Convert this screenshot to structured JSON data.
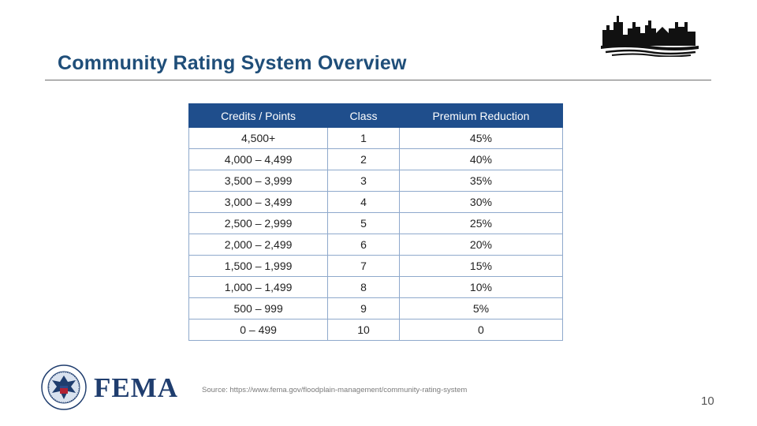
{
  "slide": {
    "title": "Community Rating System Overview",
    "page_number": "10",
    "source": "Source: https://www.fema.gov/floodplain-management/community-rating-system",
    "logo_text": "FEMA",
    "seal_text": "U.S. DEPARTMENT OF HOMELAND SECURITY"
  },
  "table": {
    "headers": [
      "Credits / Points",
      "Class",
      "Premium Reduction"
    ],
    "rows": [
      [
        "4,500+",
        "1",
        "45%"
      ],
      [
        "4,000 – 4,499",
        "2",
        "40%"
      ],
      [
        "3,500 – 3,999",
        "3",
        "35%"
      ],
      [
        "3,000 – 3,499",
        "4",
        "30%"
      ],
      [
        "2,500 – 2,999",
        "5",
        "25%"
      ],
      [
        "2,000 – 2,499",
        "6",
        "20%"
      ],
      [
        "1,500 – 1,999",
        "7",
        "15%"
      ],
      [
        "1,000 – 1,499",
        "8",
        "10%"
      ],
      [
        "500 – 999",
        "9",
        "5%"
      ],
      [
        "0 – 499",
        "10",
        "0"
      ]
    ]
  },
  "colors": {
    "title": "#1f4e79",
    "header_bg": "#1f4e8c",
    "grid": "#8fa9cc",
    "logo": "#1f3d6e"
  },
  "icons": {
    "skyline": "city-skyline-icon",
    "seal": "dhs-seal-icon"
  }
}
